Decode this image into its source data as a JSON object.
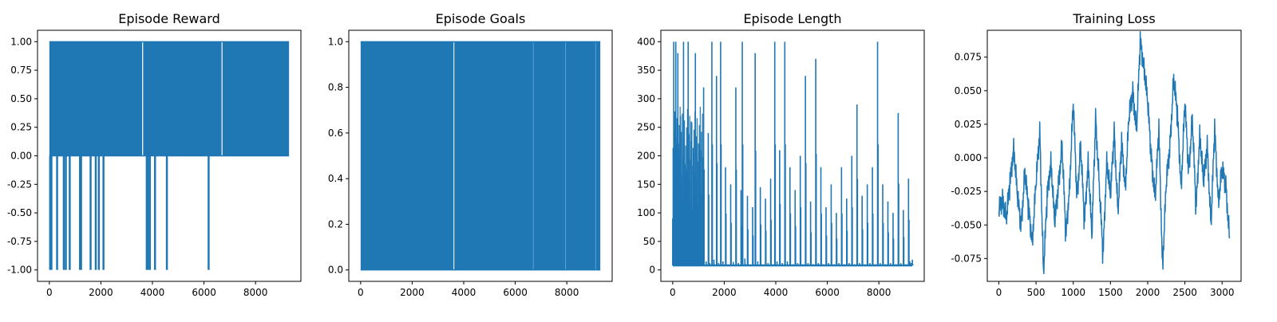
{
  "colors": {
    "series": "#1f77b4",
    "axes": "#000000",
    "background": "#ffffff"
  },
  "chart_data": [
    {
      "type": "line",
      "title": "Episode Reward",
      "xlabel": "",
      "ylabel": "",
      "xlim": [
        -460,
        9760
      ],
      "ylim": [
        -1.1,
        1.1
      ],
      "xticks": [
        0,
        2000,
        4000,
        6000,
        8000
      ],
      "yticks": [
        -1.0,
        -0.75,
        -0.5,
        -0.25,
        0.0,
        0.25,
        0.5,
        0.75,
        1.0
      ],
      "ytick_decimals": 2,
      "grid": false,
      "series": [
        {
          "values_summary": "binary episodes oscillating 0 to 1 with occasional -1",
          "x_range": [
            0,
            9300
          ],
          "levels": [
            -1,
            0,
            1
          ]
        }
      ],
      "x": [
        0,
        30,
        80,
        130,
        220,
        300,
        380,
        450,
        560,
        640,
        700,
        790,
        860,
        940,
        1000,
        1100,
        1190,
        1230,
        1300,
        1400,
        1500,
        1600,
        1640,
        1700,
        1800,
        1880,
        1920,
        2000,
        2100,
        2150,
        2200,
        2300,
        2400,
        2500,
        2600,
        2700,
        2800,
        2900,
        3000,
        3100,
        3200,
        3300,
        3400,
        3500,
        3580,
        3640,
        3700,
        3780,
        3820,
        3900,
        4000,
        4050,
        4100,
        4200,
        4300,
        4400,
        4500,
        4560,
        4600,
        4700,
        4800,
        4900,
        5000,
        5100,
        5200,
        5300,
        5400,
        5500,
        5600,
        5700,
        5800,
        5900,
        6000,
        6100,
        6180,
        6200,
        6300,
        6400,
        6500,
        6600,
        6680,
        6720,
        6800,
        6900,
        7000,
        7100,
        7200,
        7300,
        7400,
        7500,
        7600,
        7700,
        7800,
        7900,
        8000,
        8100,
        8200,
        8300,
        8400,
        8500,
        8600,
        8700,
        8800,
        8900,
        9000,
        9100,
        9150,
        9200,
        9250,
        9300
      ],
      "y": [
        0,
        1,
        -1,
        1,
        0,
        -1,
        1,
        0,
        -1,
        1,
        0,
        -1,
        1,
        0,
        1,
        1,
        -1,
        1,
        0,
        1,
        0,
        -1,
        1,
        0,
        -1,
        1,
        -1,
        1,
        -1,
        1,
        0,
        1,
        0,
        1,
        0,
        1,
        0,
        1,
        0,
        1,
        0,
        1,
        0,
        1,
        0,
        0,
        1,
        -1,
        1,
        -1,
        1,
        0,
        -1,
        1,
        0,
        1,
        -1,
        1,
        0,
        1,
        0,
        1,
        0,
        1,
        0,
        1,
        0,
        1,
        0,
        1,
        0,
        1,
        0,
        1,
        -1,
        1,
        0,
        1,
        0,
        1,
        0,
        1,
        0,
        1,
        0,
        1,
        0,
        1,
        0,
        1,
        0,
        1,
        0,
        1,
        0,
        1,
        0,
        1,
        0,
        1,
        0,
        1,
        0,
        1,
        0,
        1,
        0,
        1,
        0,
        1
      ]
    },
    {
      "type": "line",
      "title": "Episode Goals",
      "xlabel": "",
      "ylabel": "",
      "xlim": [
        -460,
        9760
      ],
      "ylim": [
        -0.05,
        1.05
      ],
      "xticks": [
        0,
        2000,
        4000,
        6000,
        8000
      ],
      "yticks": [
        0.0,
        0.2,
        0.4,
        0.6,
        0.8,
        1.0
      ],
      "ytick_decimals": 1,
      "grid": false,
      "x": [
        0,
        9300
      ],
      "y": [
        0,
        1
      ]
    },
    {
      "type": "line",
      "title": "Episode Length",
      "xlabel": "",
      "ylabel": "",
      "xlim": [
        -460,
        9760
      ],
      "ylim": [
        -20,
        420
      ],
      "xticks": [
        0,
        2000,
        4000,
        6000,
        8000
      ],
      "yticks": [
        0,
        50,
        100,
        150,
        200,
        250,
        300,
        350,
        400
      ],
      "ytick_decimals": 0,
      "grid": false,
      "x": [
        0,
        40,
        80,
        120,
        160,
        200,
        260,
        300,
        360,
        420,
        480,
        520,
        600,
        660,
        720,
        800,
        880,
        960,
        1040,
        1120,
        1200,
        1300,
        1380,
        1440,
        1520,
        1600,
        1700,
        1780,
        1860,
        1950,
        2050,
        2150,
        2250,
        2350,
        2450,
        2550,
        2650,
        2700,
        2800,
        2900,
        3000,
        3100,
        3200,
        3300,
        3400,
        3500,
        3600,
        3700,
        3800,
        3900,
        3960,
        4050,
        4150,
        4250,
        4350,
        4450,
        4550,
        4650,
        4750,
        4850,
        4950,
        5050,
        5150,
        5250,
        5350,
        5450,
        5550,
        5650,
        5750,
        5850,
        5950,
        6050,
        6150,
        6250,
        6350,
        6450,
        6550,
        6650,
        6750,
        6850,
        6950,
        7050,
        7150,
        7250,
        7350,
        7450,
        7550,
        7650,
        7750,
        7850,
        7950,
        8050,
        8150,
        8250,
        8350,
        8450,
        8550,
        8650,
        8750,
        8850,
        8950,
        9050,
        9150,
        9200,
        9250,
        9300
      ],
      "y": [
        90,
        400,
        20,
        400,
        15,
        380,
        30,
        270,
        12,
        400,
        25,
        180,
        400,
        15,
        260,
        12,
        380,
        20,
        220,
        10,
        320,
        15,
        240,
        12,
        400,
        18,
        340,
        12,
        400,
        15,
        180,
        10,
        150,
        14,
        320,
        12,
        140,
        400,
        20,
        130,
        10,
        110,
        380,
        15,
        145,
        10,
        125,
        12,
        160,
        10,
        400,
        15,
        210,
        12,
        400,
        15,
        180,
        10,
        140,
        12,
        200,
        10,
        340,
        12,
        120,
        10,
        370,
        12,
        180,
        10,
        110,
        12,
        150,
        10,
        100,
        12,
        180,
        10,
        125,
        12,
        200,
        10,
        290,
        12,
        130,
        10,
        150,
        12,
        180,
        10,
        400,
        12,
        150,
        10,
        120,
        12,
        100,
        10,
        275,
        12,
        105,
        10,
        160,
        15,
        12,
        18
      ],
      "floor": 8
    },
    {
      "type": "line",
      "title": "Training Loss",
      "xlabel": "",
      "ylabel": "",
      "xlim": [
        -155,
        3255
      ],
      "ylim": [
        -0.092,
        0.095
      ],
      "xticks": [
        0,
        500,
        1000,
        1500,
        2000,
        2500,
        3000
      ],
      "yticks": [
        -0.075,
        -0.05,
        -0.025,
        0.0,
        0.025,
        0.05,
        0.075
      ],
      "ytick_decimals": 3,
      "grid": false,
      "x": [
        0,
        50,
        100,
        150,
        200,
        250,
        300,
        350,
        400,
        450,
        500,
        550,
        600,
        650,
        700,
        750,
        800,
        850,
        900,
        950,
        1000,
        1050,
        1100,
        1150,
        1200,
        1250,
        1300,
        1350,
        1400,
        1450,
        1500,
        1550,
        1600,
        1650,
        1700,
        1750,
        1800,
        1850,
        1900,
        1950,
        2000,
        2050,
        2100,
        2150,
        2200,
        2250,
        2300,
        2350,
        2400,
        2450,
        2500,
        2550,
        2600,
        2650,
        2700,
        2750,
        2800,
        2850,
        2900,
        2950,
        3000,
        3050,
        3100
      ],
      "y": [
        -0.04,
        -0.03,
        -0.045,
        -0.02,
        0.01,
        -0.03,
        -0.05,
        -0.01,
        -0.04,
        -0.06,
        -0.02,
        0.02,
        -0.085,
        -0.03,
        0.0,
        -0.05,
        -0.02,
        0.01,
        -0.06,
        -0.02,
        0.04,
        -0.03,
        0.01,
        -0.05,
        0.0,
        -0.06,
        0.03,
        -0.02,
        -0.075,
        0.0,
        -0.03,
        0.02,
        -0.04,
        0.01,
        -0.02,
        0.03,
        0.05,
        0.02,
        0.085,
        0.07,
        0.04,
        0.0,
        -0.03,
        0.02,
        -0.08,
        -0.02,
        0.01,
        0.06,
        0.03,
        -0.02,
        0.04,
        -0.01,
        0.03,
        -0.04,
        0.02,
        -0.02,
        0.01,
        -0.05,
        0.02,
        -0.03,
        -0.01,
        -0.02,
        -0.06
      ]
    }
  ]
}
